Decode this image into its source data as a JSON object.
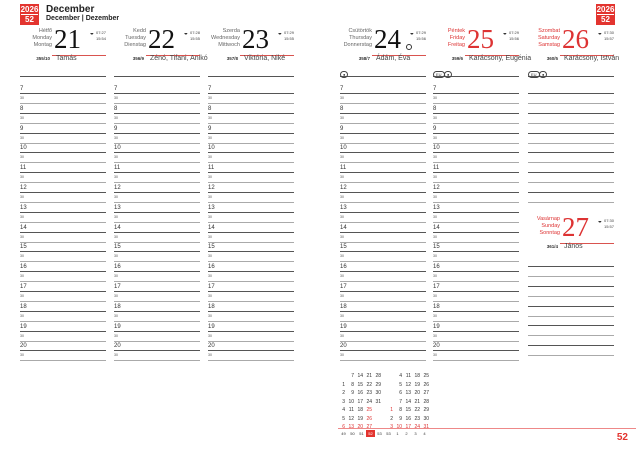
{
  "header": {
    "year": "2026",
    "week": "52",
    "month": "December",
    "month_translations": "December | Dezember"
  },
  "days": [
    {
      "names": [
        "Hétfő",
        "Monday",
        "Montag"
      ],
      "number": "21",
      "sunrise": "07:27",
      "sunset": "15:54",
      "ordinal": "355/10",
      "nameday": "Tamás",
      "holiday": false
    },
    {
      "names": [
        "Kedd",
        "Tuesday",
        "Dienstag"
      ],
      "number": "22",
      "sunrise": "07:28",
      "sunset": "15:55",
      "ordinal": "356/9",
      "nameday": "Zénó, Tifani, Anikó",
      "holiday": false
    },
    {
      "names": [
        "Szerda",
        "Wednesday",
        "Mittwoch"
      ],
      "number": "23",
      "sunrise": "07:29",
      "sunset": "15:55",
      "ordinal": "357/8",
      "nameday": "Viktória, Niké",
      "holiday": false
    },
    {
      "names": [
        "Csütörtök",
        "Thursday",
        "Donnerstag"
      ],
      "number": "24",
      "sunrise": "07:29",
      "sunset": "15:56",
      "ordinal": "358/7",
      "nameday": "Ádám, Éva",
      "holiday": false,
      "icons": [
        "●"
      ],
      "moon": "full-moon"
    },
    {
      "names": [
        "Péntek",
        "Friday",
        "Freitag"
      ],
      "number": "25",
      "sunrise": "07:29",
      "sunset": "15:56",
      "ordinal": "359/6",
      "nameday": "Karácsony, Eugénia",
      "holiday": true,
      "icons": [
        "EU",
        "●"
      ]
    },
    {
      "names": [
        "Szombat",
        "Saturday",
        "Samstag"
      ],
      "number": "26",
      "sunrise": "07:30",
      "sunset": "15:57",
      "ordinal": "360/5",
      "nameday": "Karácsony, István",
      "holiday": true,
      "icons": [
        "EU",
        "●"
      ]
    },
    {
      "names": [
        "Vasárnap",
        "Sunday",
        "Sonntag"
      ],
      "number": "27",
      "sunrise": "07:30",
      "sunset": "15:57",
      "ordinal": "361/4",
      "nameday": "János",
      "holiday": true
    }
  ],
  "hours": [
    "7",
    "8",
    "9",
    "10",
    "11",
    "12",
    "13",
    "14",
    "15",
    "16",
    "17",
    "18",
    "19",
    "20"
  ],
  "half_label": "30",
  "mini_calendar": {
    "december": [
      [
        "",
        "7",
        "14",
        "21",
        "28"
      ],
      [
        "1",
        "8",
        "15",
        "22",
        "29"
      ],
      [
        "2",
        "9",
        "16",
        "23",
        "30"
      ],
      [
        "3",
        "10",
        "17",
        "24",
        "31"
      ],
      [
        "4",
        "11",
        "18",
        "25",
        ""
      ],
      [
        "5",
        "12",
        "19",
        "26",
        ""
      ],
      [
        "6",
        "13",
        "20",
        "27",
        ""
      ]
    ],
    "january": [
      [
        "",
        "4",
        "11",
        "18",
        "25"
      ],
      [
        "",
        "5",
        "12",
        "19",
        "26"
      ],
      [
        "",
        "6",
        "13",
        "20",
        "27"
      ],
      [
        "",
        "7",
        "14",
        "21",
        "28"
      ],
      [
        "1",
        "8",
        "15",
        "22",
        "29"
      ],
      [
        "2",
        "9",
        "16",
        "23",
        "30"
      ],
      [
        "3",
        "10",
        "17",
        "24",
        "31"
      ]
    ],
    "weeks": [
      "49",
      "50",
      "51",
      "52",
      "53",
      "53",
      "1",
      "2",
      "3",
      "4"
    ],
    "current_week": "52"
  },
  "page_number": "52",
  "colors": {
    "accent": "#e3342f"
  }
}
